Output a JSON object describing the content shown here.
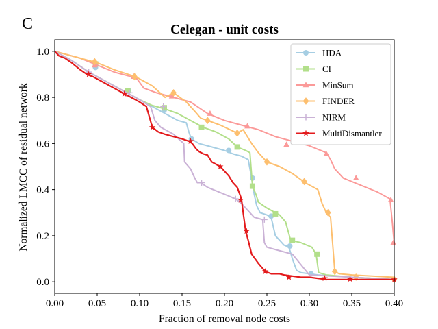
{
  "panel_label": "C",
  "chart_data": {
    "type": "line",
    "title": "Celegan - unit costs",
    "xlabel": "Fraction of removal node costs",
    "ylabel": "Normalized LMCC of residual network",
    "xlim": [
      0.0,
      0.4
    ],
    "ylim": [
      -0.05,
      1.05
    ],
    "xticks": [
      0.0,
      0.05,
      0.1,
      0.15,
      0.2,
      0.25,
      0.3,
      0.35,
      0.4
    ],
    "xtick_labels": [
      "0.00",
      "0.05",
      "0.10",
      "0.15",
      "0.20",
      "0.25",
      "0.30",
      "0.35",
      "0.40"
    ],
    "yticks": [
      0.0,
      0.2,
      0.4,
      0.6,
      0.8,
      1.0
    ],
    "ytick_labels": [
      "0.0",
      "0.2",
      "0.4",
      "0.6",
      "0.8",
      "1.0"
    ],
    "grid": false,
    "legend_position": "top-right",
    "series": [
      {
        "name": "HDA",
        "color": "#a6cee3",
        "marker": "circle",
        "x": [
          0.0,
          0.02,
          0.04,
          0.06,
          0.08,
          0.1,
          0.115,
          0.13,
          0.145,
          0.155,
          0.158,
          0.161,
          0.17,
          0.185,
          0.2,
          0.21,
          0.22,
          0.228,
          0.232,
          0.235,
          0.238,
          0.242,
          0.25,
          0.255,
          0.26,
          0.265,
          0.27,
          0.276,
          0.28,
          0.285,
          0.29,
          0.3,
          0.31,
          0.35,
          0.4
        ],
        "y": [
          1.0,
          0.96,
          0.91,
          0.87,
          0.83,
          0.79,
          0.76,
          0.73,
          0.7,
          0.69,
          0.65,
          0.62,
          0.6,
          0.585,
          0.57,
          0.555,
          0.545,
          0.53,
          0.45,
          0.38,
          0.33,
          0.3,
          0.29,
          0.28,
          0.2,
          0.18,
          0.16,
          0.15,
          0.1,
          0.05,
          0.04,
          0.035,
          0.03,
          0.02,
          0.01
        ],
        "markers": [
          [
            0.048,
            0.93
          ],
          [
            0.087,
            0.83
          ],
          [
            0.129,
            0.745
          ],
          [
            0.161,
            0.62
          ],
          [
            0.205,
            0.57
          ],
          [
            0.233,
            0.45
          ],
          [
            0.255,
            0.285
          ],
          [
            0.277,
            0.155
          ],
          [
            0.302,
            0.035
          ]
        ]
      },
      {
        "name": "CI",
        "color": "#b2df8a",
        "marker": "square",
        "x": [
          0.0,
          0.02,
          0.04,
          0.06,
          0.08,
          0.1,
          0.115,
          0.13,
          0.145,
          0.16,
          0.175,
          0.19,
          0.205,
          0.215,
          0.225,
          0.23,
          0.233,
          0.237,
          0.24,
          0.25,
          0.26,
          0.265,
          0.272,
          0.278,
          0.29,
          0.303,
          0.308,
          0.311,
          0.32,
          0.35,
          0.4
        ],
        "y": [
          1.0,
          0.96,
          0.91,
          0.87,
          0.83,
          0.79,
          0.765,
          0.75,
          0.73,
          0.7,
          0.67,
          0.65,
          0.62,
          0.585,
          0.57,
          0.56,
          0.415,
          0.38,
          0.345,
          0.32,
          0.3,
          0.29,
          0.26,
          0.18,
          0.17,
          0.15,
          0.12,
          0.04,
          0.03,
          0.02,
          0.01
        ],
        "markers": [
          [
            0.048,
            0.945
          ],
          [
            0.086,
            0.83
          ],
          [
            0.129,
            0.755
          ],
          [
            0.173,
            0.67
          ],
          [
            0.215,
            0.585
          ],
          [
            0.233,
            0.415
          ],
          [
            0.26,
            0.295
          ],
          [
            0.28,
            0.18
          ],
          [
            0.309,
            0.12
          ]
        ]
      },
      {
        "name": "MinSum",
        "color": "#fb9a99",
        "marker": "triangle",
        "x": [
          0.0,
          0.03,
          0.05,
          0.07,
          0.09,
          0.097,
          0.105,
          0.12,
          0.14,
          0.16,
          0.18,
          0.2,
          0.22,
          0.24,
          0.26,
          0.28,
          0.3,
          0.32,
          0.325,
          0.33,
          0.34,
          0.36,
          0.38,
          0.395,
          0.398,
          0.4
        ],
        "y": [
          1.0,
          0.97,
          0.94,
          0.91,
          0.89,
          0.88,
          0.84,
          0.82,
          0.8,
          0.78,
          0.73,
          0.7,
          0.68,
          0.66,
          0.63,
          0.61,
          0.59,
          0.56,
          0.53,
          0.49,
          0.45,
          0.42,
          0.39,
          0.36,
          0.25,
          0.165
        ],
        "markers": [
          [
            0.047,
            0.94
          ],
          [
            0.093,
            0.89
          ],
          [
            0.138,
            0.805
          ],
          [
            0.183,
            0.73
          ],
          [
            0.227,
            0.675
          ],
          [
            0.273,
            0.595
          ],
          [
            0.32,
            0.555
          ],
          [
            0.355,
            0.45
          ],
          [
            0.396,
            0.355
          ],
          [
            0.399,
            0.17
          ]
        ]
      },
      {
        "name": "FINDER",
        "color": "#fdbf6f",
        "marker": "diamond",
        "x": [
          0.0,
          0.03,
          0.05,
          0.07,
          0.095,
          0.115,
          0.13,
          0.14,
          0.155,
          0.165,
          0.172,
          0.18,
          0.195,
          0.215,
          0.222,
          0.232,
          0.24,
          0.25,
          0.265,
          0.28,
          0.295,
          0.31,
          0.315,
          0.32,
          0.325,
          0.33,
          0.335,
          0.35,
          0.4
        ],
        "y": [
          1.0,
          0.97,
          0.95,
          0.92,
          0.89,
          0.85,
          0.8,
          0.82,
          0.78,
          0.74,
          0.71,
          0.7,
          0.68,
          0.645,
          0.66,
          0.6,
          0.56,
          0.52,
          0.5,
          0.47,
          0.43,
          0.4,
          0.34,
          0.3,
          0.28,
          0.045,
          0.035,
          0.03,
          0.02
        ],
        "markers": [
          [
            0.047,
            0.955
          ],
          [
            0.094,
            0.89
          ],
          [
            0.14,
            0.82
          ],
          [
            0.18,
            0.7
          ],
          [
            0.215,
            0.645
          ],
          [
            0.25,
            0.52
          ],
          [
            0.294,
            0.435
          ],
          [
            0.322,
            0.3
          ],
          [
            0.33,
            0.045
          ],
          [
            0.355,
            0.02
          ],
          [
            0.4,
            0.01
          ]
        ]
      },
      {
        "name": "NIRM",
        "color": "#cab2d6",
        "marker": "plus",
        "x": [
          0.0,
          0.02,
          0.04,
          0.06,
          0.08,
          0.1,
          0.113,
          0.118,
          0.125,
          0.14,
          0.152,
          0.153,
          0.16,
          0.165,
          0.168,
          0.172,
          0.18,
          0.2,
          0.213,
          0.22,
          0.225,
          0.23,
          0.235,
          0.24,
          0.245,
          0.247,
          0.25,
          0.26,
          0.28,
          0.3,
          0.4
        ],
        "y": [
          1.0,
          0.96,
          0.91,
          0.87,
          0.83,
          0.79,
          0.76,
          0.7,
          0.67,
          0.64,
          0.6,
          0.52,
          0.49,
          0.45,
          0.43,
          0.43,
          0.41,
          0.38,
          0.36,
          0.34,
          0.32,
          0.3,
          0.28,
          0.275,
          0.27,
          0.17,
          0.15,
          0.14,
          0.12,
          0.03,
          0.01
        ],
        "markers": [
          [
            0.04,
            0.91
          ],
          [
            0.088,
            0.82
          ],
          [
            0.128,
            0.76
          ],
          [
            0.173,
            0.43
          ],
          [
            0.213,
            0.36
          ],
          [
            0.247,
            0.27
          ]
        ]
      },
      {
        "name": "MultiDismantler",
        "color": "#e31a1c",
        "marker": "star",
        "x": [
          0.0,
          0.005,
          0.012,
          0.02,
          0.03,
          0.038,
          0.045,
          0.055,
          0.065,
          0.075,
          0.082,
          0.09,
          0.1,
          0.108,
          0.115,
          0.122,
          0.13,
          0.14,
          0.15,
          0.158,
          0.162,
          0.167,
          0.17,
          0.175,
          0.18,
          0.185,
          0.19,
          0.195,
          0.2,
          0.205,
          0.21,
          0.215,
          0.22,
          0.222,
          0.225,
          0.228,
          0.232,
          0.24,
          0.248,
          0.255,
          0.265,
          0.27,
          0.28,
          0.29,
          0.3,
          0.31,
          0.32,
          0.35,
          0.4
        ],
        "y": [
          1.0,
          0.98,
          0.97,
          0.95,
          0.92,
          0.9,
          0.89,
          0.87,
          0.85,
          0.83,
          0.815,
          0.8,
          0.78,
          0.76,
          0.67,
          0.65,
          0.64,
          0.63,
          0.62,
          0.61,
          0.6,
          0.575,
          0.565,
          0.555,
          0.55,
          0.52,
          0.51,
          0.5,
          0.48,
          0.46,
          0.43,
          0.41,
          0.36,
          0.3,
          0.22,
          0.18,
          0.12,
          0.08,
          0.045,
          0.035,
          0.035,
          0.03,
          0.025,
          0.02,
          0.02,
          0.015,
          0.01,
          0.01,
          0.01
        ],
        "markers": [
          [
            0.04,
            0.9
          ],
          [
            0.082,
            0.815
          ],
          [
            0.115,
            0.67
          ],
          [
            0.16,
            0.61
          ],
          [
            0.195,
            0.5
          ],
          [
            0.219,
            0.355
          ],
          [
            0.226,
            0.22
          ],
          [
            0.248,
            0.045
          ],
          [
            0.276,
            0.02
          ],
          [
            0.318,
            0.015
          ],
          [
            0.348,
            0.012
          ],
          [
            0.4,
            0.01
          ]
        ]
      }
    ]
  }
}
